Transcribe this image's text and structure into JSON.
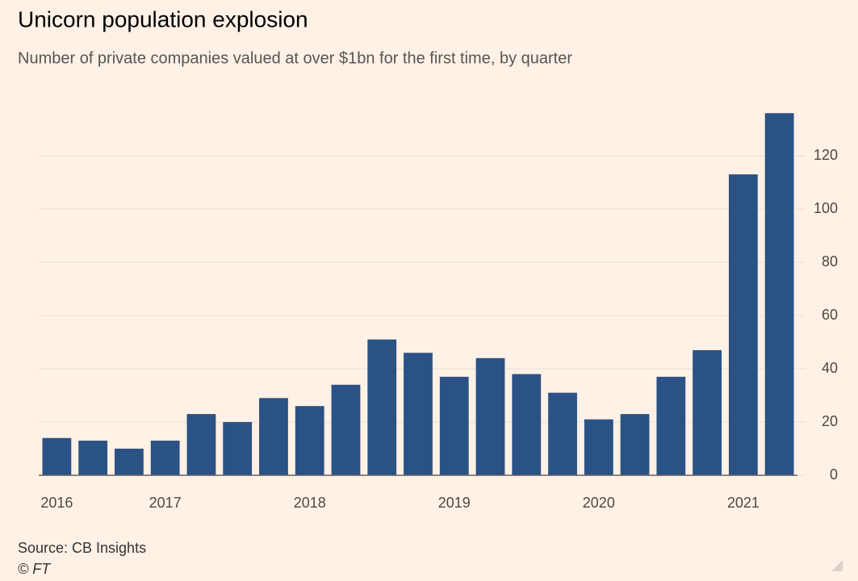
{
  "chart_data": {
    "type": "bar",
    "title": "Unicorn population explosion",
    "subtitle": "Number of private companies valued at over $1bn for the first time, by quarter",
    "source": "Source: CB Insights",
    "credit": "© FT",
    "categories": [
      "2016",
      null,
      null,
      "2017",
      null,
      null,
      null,
      "2018",
      null,
      null,
      null,
      "2019",
      null,
      null,
      null,
      "2020",
      null,
      null,
      null,
      "2021",
      null
    ],
    "values": [
      14,
      13,
      10,
      13,
      23,
      20,
      29,
      26,
      34,
      51,
      46,
      37,
      44,
      38,
      31,
      21,
      23,
      37,
      47,
      113,
      136
    ],
    "color": "#2b5285",
    "ylim": [
      0,
      140
    ],
    "yticks": [
      0,
      20,
      40,
      60,
      80,
      100,
      120
    ],
    "grid": true,
    "y_axis_side": "right"
  }
}
